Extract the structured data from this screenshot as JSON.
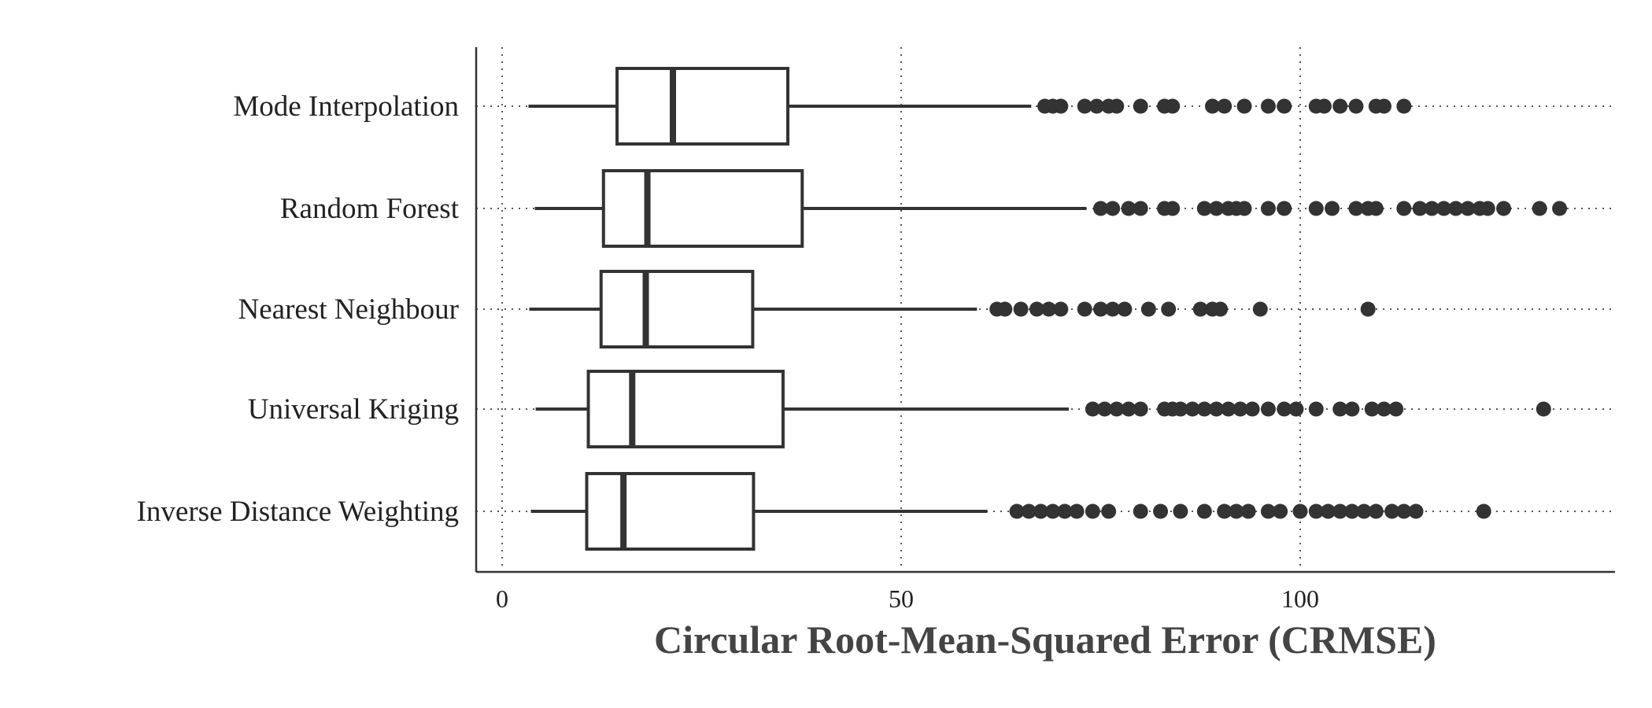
{
  "chart_data": {
    "type": "boxplot",
    "orientation": "horizontal",
    "xlabel": "Circular Root-Mean-Squared Error (CRMSE)",
    "ylabel": "",
    "xlim": [
      -3.2,
      139.5
    ],
    "xticks": [
      0,
      50,
      100
    ],
    "grid": "dotted vertical at ticks and dotted horizontal through each category",
    "colors": {
      "box_stroke": "#333333",
      "box_fill": "#ffffff",
      "outlier": "#333333",
      "grid": "#555555"
    },
    "categories": [
      {
        "name": "Mode Interpolation",
        "whisker_low": 3.3,
        "q1": 14.4,
        "median": 21.4,
        "q3": 35.8,
        "whisker_high": 66.3,
        "outliers": [
          68,
          69,
          70,
          73,
          74.5,
          76,
          77,
          80,
          83,
          84,
          89,
          90.5,
          93,
          96,
          98,
          102,
          103,
          105,
          107,
          109.5,
          110.5,
          113
        ]
      },
      {
        "name": "Random Forest",
        "whisker_low": 4.1,
        "q1": 12.7,
        "median": 18.2,
        "q3": 37.6,
        "whisker_high": 73.2,
        "outliers": [
          75,
          76.5,
          78.5,
          80,
          83,
          84,
          88,
          89.5,
          91,
          92,
          93,
          96,
          98,
          102,
          104,
          107,
          108.5,
          109.5,
          113,
          115,
          116.5,
          118,
          119.5,
          121,
          122.5,
          123.5,
          125.5,
          130,
          132.5
        ]
      },
      {
        "name": "Nearest Neighbour",
        "whisker_low": 3.4,
        "q1": 12.4,
        "median": 18.0,
        "q3": 31.4,
        "whisker_high": 59.5,
        "outliers": [
          62,
          63,
          65,
          67,
          68.5,
          70,
          73,
          75,
          76.5,
          78,
          81,
          83.5,
          87.5,
          89,
          90,
          95,
          108.5
        ]
      },
      {
        "name": "Universal Kriging",
        "whisker_low": 4.2,
        "q1": 10.8,
        "median": 16.3,
        "q3": 35.2,
        "whisker_high": 71.0,
        "outliers": [
          74,
          75.5,
          77,
          78.5,
          80,
          83,
          84,
          85,
          86.5,
          88,
          89.5,
          91,
          92.5,
          94,
          96,
          98,
          99.5,
          102,
          105,
          106.5,
          109,
          110.5,
          112,
          130.5
        ]
      },
      {
        "name": "Inverse Distance Weighting",
        "whisker_low": 3.6,
        "q1": 10.6,
        "median": 15.2,
        "q3": 31.5,
        "whisker_high": 60.8,
        "outliers": [
          64.5,
          66,
          67.5,
          69,
          70.5,
          72,
          74,
          76,
          80,
          82.5,
          85,
          88,
          90.5,
          92,
          93.5,
          96,
          97.5,
          100,
          102,
          103.5,
          105,
          106.5,
          108,
          109.5,
          111.5,
          113,
          114.5,
          123
        ]
      }
    ]
  }
}
